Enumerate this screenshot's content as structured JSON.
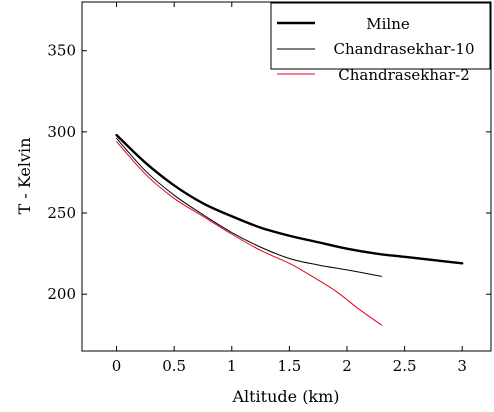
{
  "chart_data": {
    "type": "line",
    "xlabel": "Altitude (km)",
    "ylabel": "T - Kelvin",
    "xlim": [
      -0.3,
      3.25
    ],
    "ylim": [
      165,
      380
    ],
    "xticks": [
      0,
      0.5,
      1,
      1.5,
      2,
      2.5,
      3
    ],
    "xtick_labels": [
      "0",
      "0.5",
      "1",
      "1.5",
      "2",
      "2.5",
      "3"
    ],
    "yticks": [
      200,
      250,
      300,
      350
    ],
    "ytick_labels": [
      "200",
      "250",
      "300",
      "350"
    ],
    "grid": false,
    "legend_position": "top-right",
    "series": [
      {
        "name": "Milne",
        "color": "#000000",
        "style": "thick",
        "x": [
          0,
          0.25,
          0.5,
          0.75,
          1.0,
          1.25,
          1.5,
          1.75,
          2.0,
          2.25,
          2.5,
          2.75,
          3.0
        ],
        "y": [
          298,
          281,
          267,
          256,
          248,
          241,
          236,
          232,
          228,
          225,
          223,
          221,
          219
        ]
      },
      {
        "name": "Chandrasekhar-10",
        "color": "#000000",
        "style": "thin",
        "x": [
          0,
          0.25,
          0.5,
          0.75,
          1.0,
          1.25,
          1.5,
          1.75,
          2.0,
          2.3
        ],
        "y": [
          296,
          276,
          261,
          249,
          238,
          229,
          222,
          218,
          215,
          211
        ]
      },
      {
        "name": "Chandrasekhar-2",
        "color": "#e8001c",
        "style": "thin",
        "x": [
          0,
          0.25,
          0.5,
          0.75,
          1.0,
          1.25,
          1.5,
          1.65,
          1.9,
          2.1,
          2.3
        ],
        "y": [
          294,
          274,
          259,
          248,
          237,
          227,
          219,
          213,
          202,
          191,
          181
        ]
      }
    ]
  }
}
